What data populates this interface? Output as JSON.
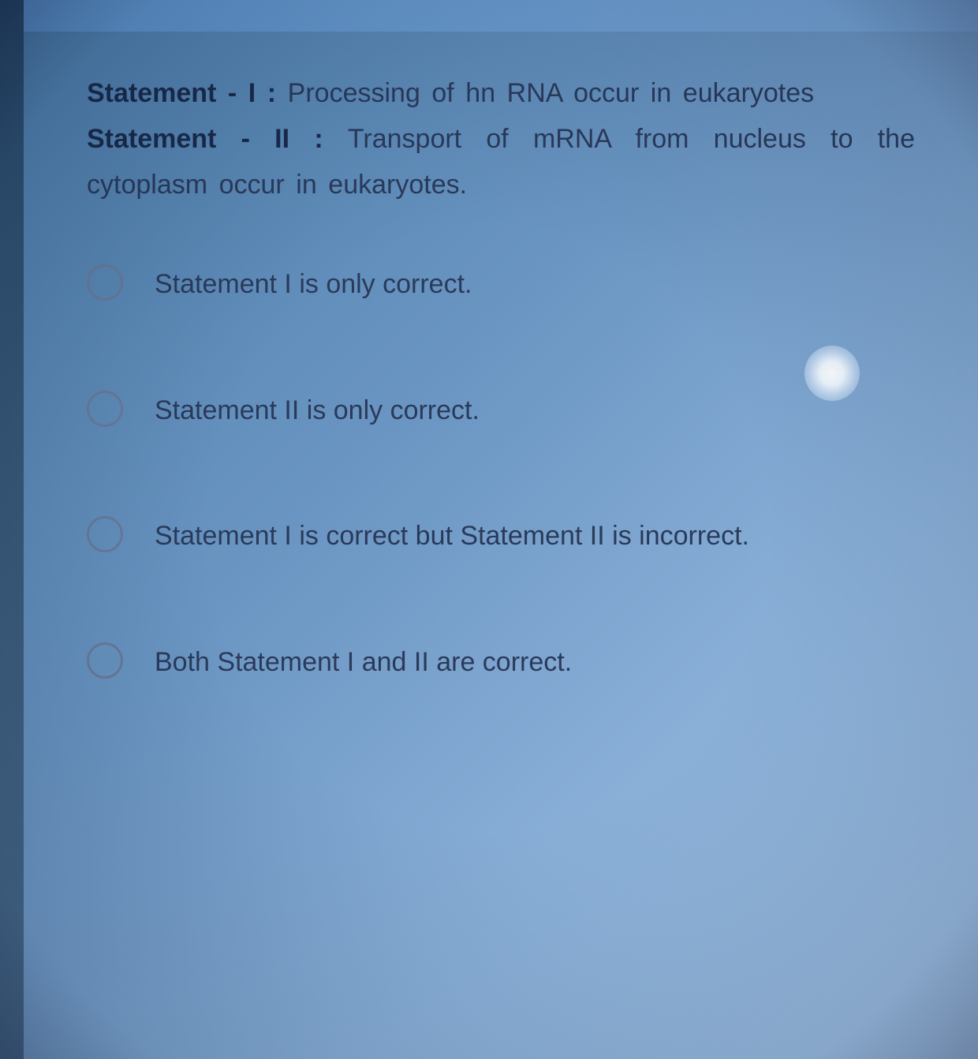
{
  "question": {
    "statement1": {
      "label": "Statement - I : ",
      "text": "Processing of hn RNA occur in eukaryotes"
    },
    "statement2": {
      "label": "Statement - II : ",
      "text": "Transport of mRNA from nucleus to the cytoplasm occur in eukaryotes."
    }
  },
  "options": [
    {
      "text": "Statement I is only correct."
    },
    {
      "text": "Statement II is only correct."
    },
    {
      "text": "Statement I is correct but Statement II is incorrect."
    },
    {
      "text": "Both Statement I and II are correct."
    }
  ],
  "styling": {
    "background_gradient": [
      "#4a7ba8",
      "#6a95c2",
      "#8ab0d8",
      "#a5c5e8"
    ],
    "text_color": "#2a3a5a",
    "label_color": "#1a2a4a",
    "radio_border": "#6a7a9a",
    "font_size_body": 34,
    "radio_diameter": 46
  }
}
